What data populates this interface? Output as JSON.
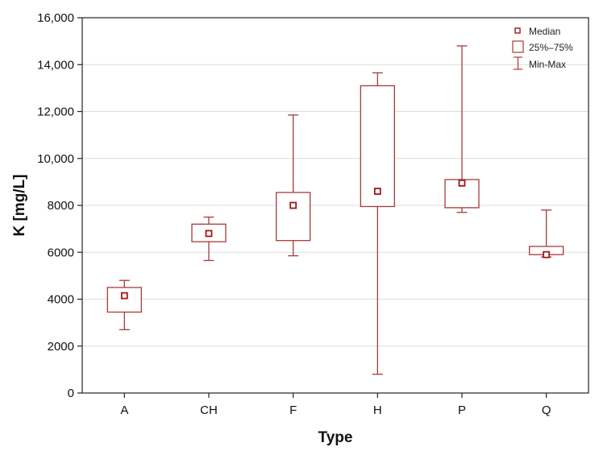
{
  "chart_data": {
    "type": "box",
    "xlabel": "Type",
    "ylabel": "K [mg/L]",
    "ylim": [
      0,
      16000
    ],
    "yticks": [
      0,
      2000,
      4000,
      6000,
      8000,
      10000,
      12000,
      14000,
      16000
    ],
    "ytick_labels": [
      "0",
      "2000",
      "4000",
      "6000",
      "8000",
      "10,000",
      "12,000",
      "14,000",
      "16,000"
    ],
    "grid": true,
    "legend_position": "top-right",
    "legend": {
      "median": "Median",
      "box": "25%–75%",
      "whisker": "Min-Max"
    },
    "categories": [
      "A",
      "CH",
      "F",
      "H",
      "P",
      "Q"
    ],
    "boxes": [
      {
        "category": "A",
        "min": 2700,
        "q1": 3450,
        "median": 4150,
        "q3": 4500,
        "max": 4800
      },
      {
        "category": "CH",
        "min": 5650,
        "q1": 6450,
        "median": 6800,
        "q3": 7200,
        "max": 7500
      },
      {
        "category": "F",
        "min": 5850,
        "q1": 6500,
        "median": 8000,
        "q3": 8550,
        "max": 11850
      },
      {
        "category": "H",
        "min": 800,
        "q1": 7950,
        "median": 8600,
        "q3": 13100,
        "max": 13650
      },
      {
        "category": "P",
        "min": 7700,
        "q1": 7900,
        "median": 8950,
        "q3": 9100,
        "max": 14800
      },
      {
        "category": "Q",
        "min": 5800,
        "q1": 5900,
        "median": 5900,
        "q3": 6250,
        "max": 7800
      }
    ],
    "colors": {
      "box": "#a83a3a",
      "median": "#a01818",
      "axis": "#222222",
      "grid": "#dcdcdc"
    }
  }
}
